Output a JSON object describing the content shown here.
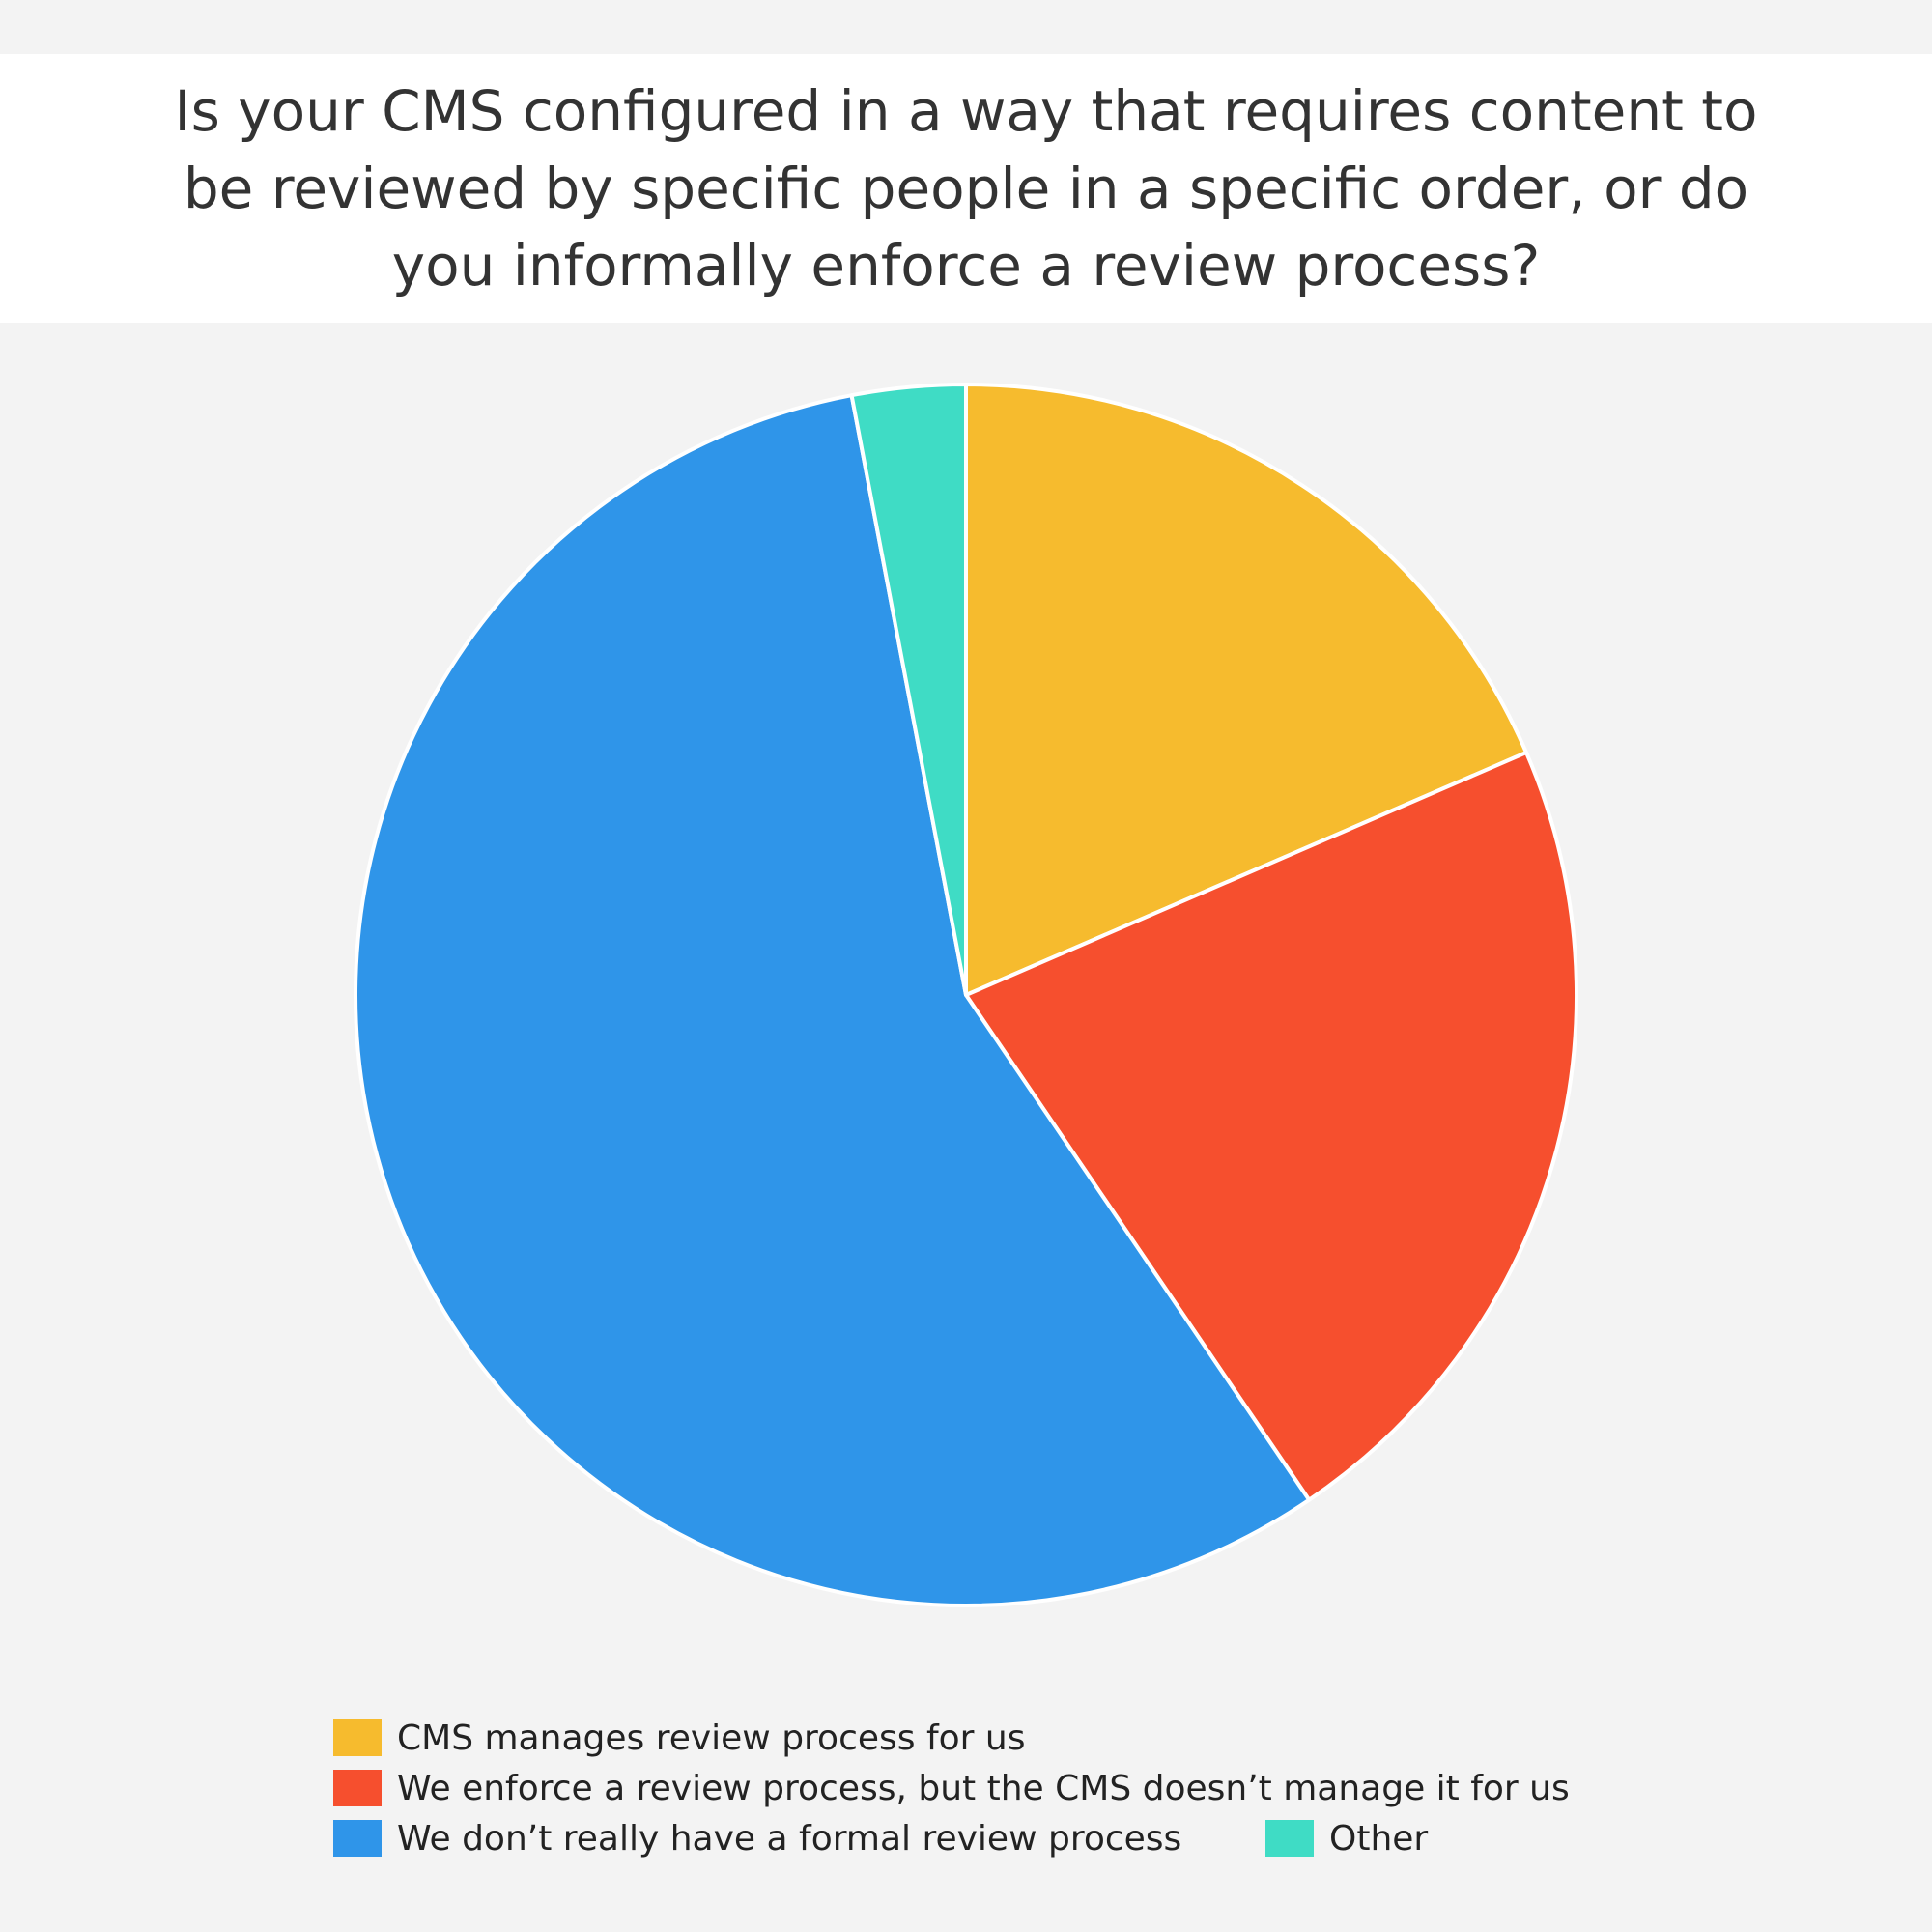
{
  "chart_data": {
    "type": "pie",
    "title": "Is your CMS configured in a way that requires content to be reviewed by specific people in a specific order, or do you informally enforce a review process?",
    "slices": [
      {
        "label": "CMS manages review process for us",
        "value": 18.5,
        "color": "#f6bb2e"
      },
      {
        "label": "We enforce a review process, but the CMS doesn’t manage it for us",
        "value": 22.0,
        "color": "#f64f2e"
      },
      {
        "label": "We don’t really have a formal review process",
        "value": 56.5,
        "color": "#2f95e9"
      },
      {
        "label": "Other",
        "value": 3.0,
        "color": "#3fdcc5"
      }
    ],
    "legend_position": "bottom",
    "start_angle_deg": 0,
    "direction": "clockwise"
  }
}
